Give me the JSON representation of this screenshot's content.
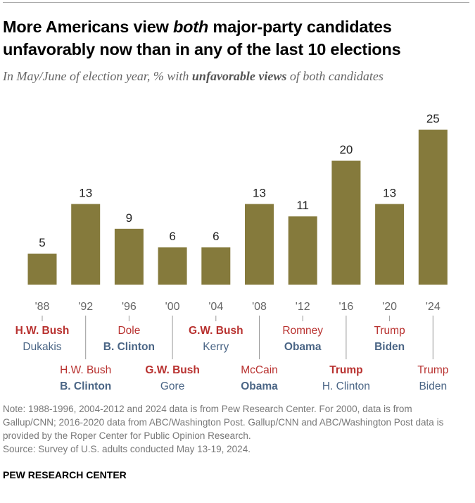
{
  "title_parts": {
    "pre": "More Americans view ",
    "em": "both",
    "post": " major-party candidates unfavorably now than in any of the last 10 elections"
  },
  "subtitle_parts": {
    "pre": "In May/June of election year, % with ",
    "bold": "unfavorable views",
    "post": " of both candidates"
  },
  "chart_data": {
    "type": "bar",
    "categories": [
      "'88",
      "'92",
      "'96",
      "'00",
      "'04",
      "'08",
      "'12",
      "'16",
      "'20",
      "'24"
    ],
    "values": [
      5,
      13,
      9,
      6,
      6,
      13,
      11,
      20,
      13,
      25
    ],
    "ylim": [
      0,
      25
    ],
    "bar_color": "#857a3c",
    "candidates": [
      {
        "rep": "H.W. Bush",
        "dem": "Dukakis",
        "winner": "rep"
      },
      {
        "rep": "H.W. Bush",
        "dem": "B. Clinton",
        "winner": "dem"
      },
      {
        "rep": "Dole",
        "dem": "B. Clinton",
        "winner": "dem"
      },
      {
        "rep": "G.W. Bush",
        "dem": "Gore",
        "winner": "rep"
      },
      {
        "rep": "G.W. Bush",
        "dem": "Kerry",
        "winner": "rep"
      },
      {
        "rep": "McCain",
        "dem": "Obama",
        "winner": "dem"
      },
      {
        "rep": "Romney",
        "dem": "Obama",
        "winner": "dem"
      },
      {
        "rep": "Trump",
        "dem": "H. Clinton",
        "winner": "rep"
      },
      {
        "rep": "Trump",
        "dem": "Biden",
        "winner": "dem"
      },
      {
        "rep": "Trump",
        "dem": "Biden",
        "winner": "none"
      }
    ],
    "rep_color": "#b8312f",
    "dem_color": "#4a6585"
  },
  "note": "Note: 1988-1996, 2004-2012 and 2024 data is from Pew Research Center. For 2000, data is from Gallup/CNN; 2016-2020 data from ABC/Washington Post. Gallup/CNN and ABC/Washington Post data is provided by the Roper Center for Public Opinion Research.\nSource: Survey of U.S. adults conducted May 13-19, 2024.",
  "source_label": "PEW RESEARCH CENTER"
}
